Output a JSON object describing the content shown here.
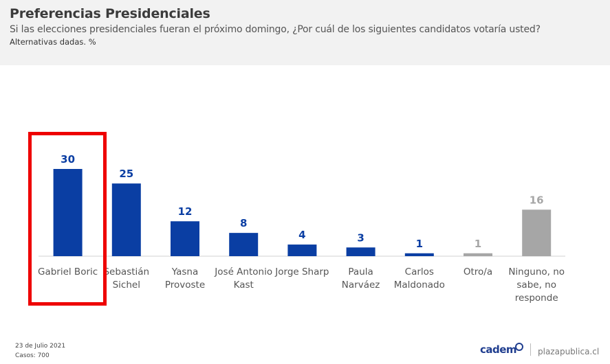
{
  "header": {
    "title": "Preferencias Presidenciales",
    "subtitle": "Si las elecciones presidenciales fueran el próximo domingo, ¿Por cuál de los siguientes candidatos votaría usted?",
    "note": "Alternativas dadas. %"
  },
  "footer": {
    "date": "23 de Julio 2021",
    "cases": "Casos: 700",
    "brand": "cadem",
    "site": "plazapublica.cl"
  },
  "colors": {
    "candidate": "#0a3ea3",
    "other": "#a6a6a6",
    "highlight": "#ee0000"
  },
  "chart_data": {
    "type": "bar",
    "categories": [
      [
        "Gabriel Boric"
      ],
      [
        "Sebastián",
        "Sichel"
      ],
      [
        "Yasna",
        "Provoste"
      ],
      [
        "José Antonio",
        "Kast"
      ],
      [
        "Jorge Sharp"
      ],
      [
        "Paula",
        "Narváez"
      ],
      [
        "Carlos",
        "Maldonado"
      ],
      [
        "Otro/a"
      ],
      [
        "Ninguno, no",
        "sabe, no",
        "responde"
      ]
    ],
    "values": [
      30,
      25,
      12,
      8,
      4,
      3,
      1,
      1,
      16
    ],
    "bar_color_keys": [
      "candidate",
      "candidate",
      "candidate",
      "candidate",
      "candidate",
      "candidate",
      "candidate",
      "other",
      "other"
    ],
    "highlighted_index": 0,
    "ylim": [
      0,
      30
    ],
    "grid": false,
    "legend": "none"
  }
}
